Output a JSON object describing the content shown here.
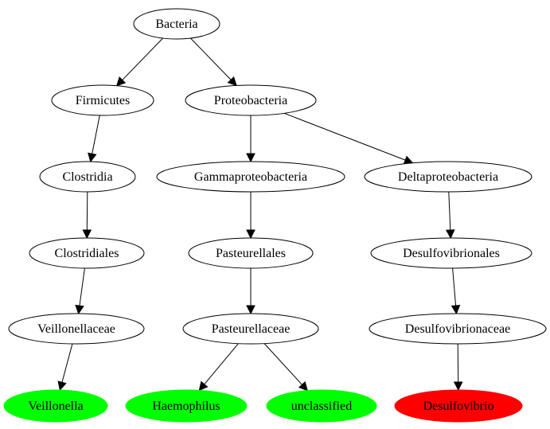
{
  "nodes": [
    {
      "id": "bacteria",
      "label": "Bacteria",
      "fill": "#ffffff",
      "stroke": "#000000"
    },
    {
      "id": "firmicutes",
      "label": "Firmicutes",
      "fill": "#ffffff",
      "stroke": "#000000"
    },
    {
      "id": "proteobacteria",
      "label": "Proteobacteria",
      "fill": "#ffffff",
      "stroke": "#000000"
    },
    {
      "id": "clostridia",
      "label": "Clostridia",
      "fill": "#ffffff",
      "stroke": "#000000"
    },
    {
      "id": "gammaproteobacteria",
      "label": "Gammaproteobacteria",
      "fill": "#ffffff",
      "stroke": "#000000"
    },
    {
      "id": "deltaproteobacteria",
      "label": "Deltaproteobacteria",
      "fill": "#ffffff",
      "stroke": "#000000"
    },
    {
      "id": "clostridiales",
      "label": "Clostridiales",
      "fill": "#ffffff",
      "stroke": "#000000"
    },
    {
      "id": "pasteurellales",
      "label": "Pasteurellales",
      "fill": "#ffffff",
      "stroke": "#000000"
    },
    {
      "id": "desulfovibrionales",
      "label": "Desulfovibrionales",
      "fill": "#ffffff",
      "stroke": "#000000"
    },
    {
      "id": "veillonellaceae",
      "label": "Veillonellaceae",
      "fill": "#ffffff",
      "stroke": "#000000"
    },
    {
      "id": "pasteurellaceae",
      "label": "Pasteurellaceae",
      "fill": "#ffffff",
      "stroke": "#000000"
    },
    {
      "id": "desulfovibrionaceae",
      "label": "Desulfovibrionaceae",
      "fill": "#ffffff",
      "stroke": "#000000"
    },
    {
      "id": "veillonella",
      "label": "Veillonella",
      "fill": "#00ff00",
      "stroke": "#00ff00"
    },
    {
      "id": "haemophilus",
      "label": "Haemophilus",
      "fill": "#00ff00",
      "stroke": "#00ff00"
    },
    {
      "id": "unclassified",
      "label": "unclassified",
      "fill": "#00ff00",
      "stroke": "#00ff00"
    },
    {
      "id": "desulfovibrio",
      "label": "Desulfovibrio",
      "fill": "#ff0000",
      "stroke": "#ff0000"
    }
  ],
  "edges": [
    {
      "from": "bacteria",
      "to": "firmicutes"
    },
    {
      "from": "bacteria",
      "to": "proteobacteria"
    },
    {
      "from": "firmicutes",
      "to": "clostridia"
    },
    {
      "from": "proteobacteria",
      "to": "gammaproteobacteria"
    },
    {
      "from": "proteobacteria",
      "to": "deltaproteobacteria"
    },
    {
      "from": "clostridia",
      "to": "clostridiales"
    },
    {
      "from": "gammaproteobacteria",
      "to": "pasteurellales"
    },
    {
      "from": "deltaproteobacteria",
      "to": "desulfovibrionales"
    },
    {
      "from": "clostridiales",
      "to": "veillonellaceae"
    },
    {
      "from": "pasteurellales",
      "to": "pasteurellaceae"
    },
    {
      "from": "desulfovibrionales",
      "to": "desulfovibrionaceae"
    },
    {
      "from": "veillonellaceae",
      "to": "veillonella"
    },
    {
      "from": "pasteurellaceae",
      "to": "haemophilus"
    },
    {
      "from": "pasteurellaceae",
      "to": "unclassified"
    },
    {
      "from": "desulfovibrionaceae",
      "to": "desulfovibrio"
    }
  ]
}
